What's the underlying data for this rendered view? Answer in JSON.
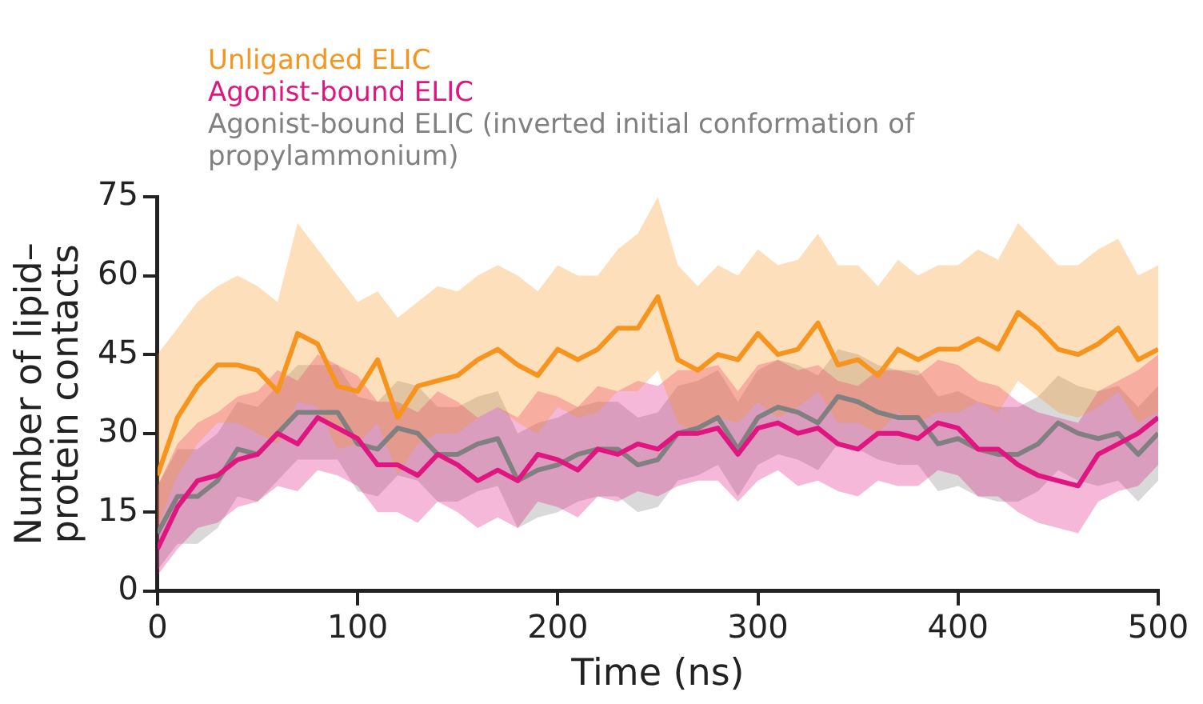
{
  "chart_data": {
    "type": "line",
    "xlabel": "Time (ns)",
    "ylabel": "Number of lipid–protein contacts",
    "x": [
      0,
      10,
      20,
      30,
      40,
      50,
      60,
      70,
      80,
      90,
      100,
      110,
      120,
      130,
      140,
      150,
      160,
      170,
      180,
      190,
      200,
      210,
      220,
      230,
      240,
      250,
      260,
      270,
      280,
      290,
      300,
      310,
      320,
      330,
      340,
      350,
      360,
      370,
      380,
      390,
      400,
      410,
      420,
      430,
      440,
      450,
      460,
      470,
      480,
      490,
      500
    ],
    "series": [
      {
        "name": "Unliganded ELIC",
        "color": "#f7941d",
        "values": [
          22,
          33,
          39,
          43,
          43,
          42,
          38,
          49,
          47,
          39,
          38,
          44,
          33,
          39,
          40,
          41,
          44,
          46,
          43,
          41,
          46,
          44,
          46,
          50,
          50,
          56,
          44,
          42,
          45,
          44,
          49,
          45,
          46,
          51,
          43,
          44,
          41,
          46,
          44,
          46,
          46,
          48,
          46,
          53,
          50,
          46,
          45,
          47,
          50,
          44,
          46
        ],
        "upper": [
          45,
          50,
          55,
          58,
          60,
          58,
          55,
          70,
          65,
          60,
          55,
          57,
          52,
          55,
          58,
          57,
          60,
          62,
          60,
          57,
          62,
          60,
          60,
          65,
          68,
          75,
          62,
          58,
          62,
          60,
          65,
          62,
          63,
          68,
          62,
          62,
          58,
          63,
          60,
          62,
          62,
          65,
          63,
          70,
          66,
          62,
          62,
          65,
          67,
          60,
          62
        ],
        "lower": [
          12,
          22,
          28,
          32,
          32,
          30,
          28,
          36,
          35,
          27,
          28,
          32,
          22,
          28,
          30,
          30,
          33,
          35,
          32,
          30,
          35,
          33,
          34,
          38,
          38,
          42,
          32,
          30,
          33,
          32,
          36,
          33,
          35,
          38,
          32,
          32,
          30,
          34,
          32,
          34,
          34,
          36,
          34,
          40,
          37,
          34,
          33,
          35,
          38,
          32,
          34
        ]
      },
      {
        "name": "Agonist-bound ELIC",
        "color": "#e0157f",
        "values": [
          8,
          16,
          21,
          22,
          25,
          26,
          30,
          28,
          33,
          31,
          29,
          24,
          24,
          22,
          26,
          24,
          21,
          23,
          21,
          26,
          25,
          23,
          27,
          26,
          28,
          27,
          30,
          30,
          31,
          26,
          31,
          32,
          30,
          31,
          28,
          27,
          30,
          30,
          29,
          32,
          31,
          27,
          27,
          24,
          22,
          21,
          20,
          26,
          28,
          30,
          33
        ],
        "upper": [
          20,
          28,
          32,
          34,
          37,
          38,
          42,
          40,
          45,
          43,
          41,
          36,
          36,
          34,
          38,
          36,
          33,
          35,
          33,
          38,
          37,
          35,
          39,
          38,
          40,
          39,
          42,
          42,
          43,
          38,
          43,
          44,
          42,
          43,
          40,
          39,
          42,
          42,
          41,
          44,
          43,
          40,
          39,
          36,
          34,
          33,
          32,
          38,
          40,
          42,
          45
        ],
        "lower": [
          3,
          8,
          12,
          13,
          16,
          17,
          20,
          19,
          23,
          22,
          20,
          15,
          15,
          13,
          17,
          15,
          12,
          14,
          12,
          17,
          16,
          14,
          18,
          17,
          19,
          18,
          20,
          21,
          21,
          17,
          21,
          23,
          20,
          21,
          19,
          18,
          21,
          20,
          20,
          23,
          22,
          18,
          18,
          15,
          13,
          12,
          11,
          17,
          19,
          20,
          24
        ]
      },
      {
        "name": "Agonist-bound ELIC (inverted initial conformation of propylammonium)",
        "color": "#808080",
        "values": [
          11,
          18,
          18,
          21,
          27,
          26,
          30,
          34,
          34,
          34,
          28,
          27,
          31,
          30,
          26,
          26,
          28,
          29,
          21,
          23,
          24,
          26,
          27,
          27,
          24,
          25,
          30,
          31,
          33,
          27,
          33,
          35,
          34,
          32,
          37,
          36,
          34,
          33,
          33,
          28,
          29,
          27,
          26,
          26,
          28,
          32,
          30,
          29,
          30,
          26,
          30
        ],
        "upper": [
          20,
          27,
          27,
          30,
          36,
          35,
          39,
          43,
          43,
          43,
          37,
          36,
          40,
          39,
          35,
          35,
          37,
          38,
          30,
          32,
          33,
          35,
          36,
          36,
          33,
          34,
          39,
          40,
          42,
          36,
          42,
          44,
          43,
          41,
          46,
          45,
          43,
          42,
          42,
          37,
          38,
          36,
          35,
          35,
          37,
          41,
          39,
          38,
          39,
          35,
          39
        ],
        "lower": [
          4,
          9,
          9,
          12,
          18,
          17,
          21,
          25,
          25,
          25,
          19,
          18,
          22,
          21,
          17,
          17,
          19,
          20,
          12,
          14,
          15,
          17,
          18,
          18,
          15,
          16,
          21,
          22,
          24,
          18,
          24,
          26,
          25,
          23,
          28,
          27,
          25,
          24,
          24,
          19,
          20,
          18,
          17,
          17,
          19,
          23,
          21,
          20,
          21,
          17,
          21
        ]
      }
    ],
    "xlim": [
      0,
      500
    ],
    "xticks": [
      0,
      100,
      200,
      300,
      400,
      500
    ],
    "ylim": [
      0,
      75
    ],
    "yticks": [
      0,
      15,
      30,
      45,
      60,
      75
    ],
    "grid": false,
    "legend": "top left",
    "marker": "none",
    "line_style": "solid"
  }
}
